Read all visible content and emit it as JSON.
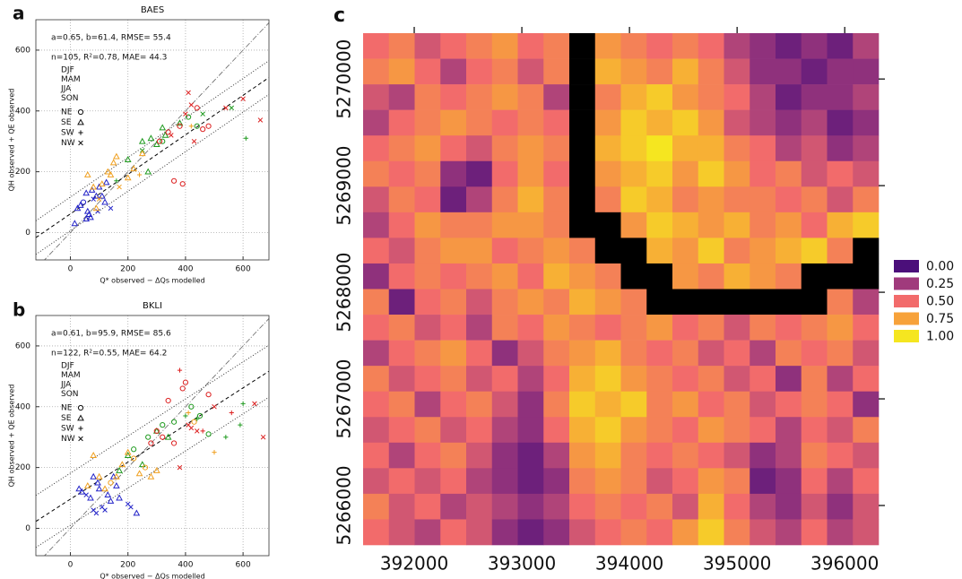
{
  "chart_data": [
    {
      "type": "scatter",
      "label": "a",
      "title": "BAES",
      "stats": [
        "a=0.65, b=61.4, RMSE= 55.4",
        "n=105, R²=0.78, MAE= 44.3"
      ],
      "fit": {
        "slope": 0.65,
        "intercept": 61.4,
        "rmse": 55.4
      },
      "xlabel": "Q* observed − ΔQs modelled",
      "ylabel": "QH observed + QE observed",
      "xlim": [
        -120,
        690
      ],
      "ylim": [
        -90,
        700
      ],
      "xticks": [
        0,
        200,
        400,
        600
      ],
      "yticks": [
        0,
        200,
        400,
        600
      ],
      "grid": true,
      "markers": [
        {
          "name": "NE",
          "shape": "circle"
        },
        {
          "name": "SE",
          "shape": "triangle"
        },
        {
          "name": "SW",
          "shape": "plus"
        },
        {
          "name": "NW",
          "shape": "cross"
        }
      ],
      "series": [
        {
          "name": "DJF",
          "color": "#2323c8",
          "x": [
            15,
            25,
            35,
            45,
            55,
            60,
            65,
            70,
            75,
            80,
            90,
            100,
            110,
            120,
            125,
            140,
            55,
            95
          ],
          "values": [
            30,
            80,
            90,
            100,
            130,
            70,
            60,
            50,
            140,
            110,
            120,
            150,
            120,
            100,
            165,
            80,
            45,
            70
          ],
          "wind": [
            "SE",
            "SE",
            "SE",
            "NE",
            "SE",
            "SE",
            "SE",
            "SE",
            "SE",
            "NW",
            "SE",
            "SE",
            "SE",
            "SE",
            "SE",
            "NW",
            "SE",
            "NW"
          ]
        },
        {
          "name": "MAM",
          "color": "#1f9a1f",
          "x": [
            160,
            200,
            250,
            280,
            300,
            320,
            330,
            380,
            410,
            440,
            460,
            560,
            610,
            320,
            250,
            270
          ],
          "values": [
            170,
            240,
            270,
            310,
            290,
            300,
            320,
            360,
            380,
            350,
            390,
            410,
            310,
            345,
            300,
            200
          ],
          "wind": [
            "SW",
            "SE",
            "NW",
            "SE",
            "SE",
            "NE",
            "SE",
            "SE",
            "NE",
            "NE",
            "NW",
            "NW",
            "SW",
            "SE",
            "SE",
            "SE"
          ]
        },
        {
          "name": "JJA",
          "color": "#dc2020",
          "x": [
            310,
            340,
            350,
            380,
            400,
            410,
            420,
            440,
            480,
            540,
            600,
            660,
            360,
            390,
            430,
            460
          ],
          "values": [
            300,
            330,
            320,
            350,
            390,
            460,
            420,
            410,
            350,
            410,
            440,
            370,
            170,
            160,
            300,
            340
          ],
          "wind": [
            "NE",
            "NE",
            "NW",
            "NE",
            "NW",
            "NW",
            "NW",
            "NE",
            "NE",
            "NW",
            "NW",
            "NW",
            "NE",
            "NE",
            "NW",
            "NE"
          ]
        },
        {
          "name": "SON",
          "color": "#f0a020",
          "x": [
            80,
            90,
            100,
            130,
            140,
            150,
            160,
            170,
            200,
            220,
            240,
            250,
            60,
            110,
            420
          ],
          "values": [
            150,
            80,
            110,
            200,
            190,
            230,
            250,
            150,
            180,
            210,
            190,
            260,
            190,
            160,
            350
          ],
          "wind": [
            "SE",
            "SE",
            "NW",
            "SE",
            "SE",
            "SE",
            "SE",
            "NW",
            "SE",
            "SE",
            "SW",
            "SE",
            "SE",
            "SE",
            "SW"
          ]
        }
      ]
    },
    {
      "type": "scatter",
      "label": "b",
      "title": "BKLI",
      "stats": [
        "a=0.61, b=95.9, RMSE= 85.6",
        "n=122, R²=0.55, MAE= 64.2"
      ],
      "fit": {
        "slope": 0.61,
        "intercept": 95.9,
        "rmse": 85.6
      },
      "xlabel": "Q* observed − ΔQs modelled",
      "ylabel": "QH observed + QE observed",
      "xlim": [
        -120,
        690
      ],
      "ylim": [
        -90,
        700
      ],
      "xticks": [
        0,
        200,
        400,
        600
      ],
      "yticks": [
        0,
        200,
        400,
        600
      ],
      "grid": true,
      "markers": [
        {
          "name": "NE",
          "shape": "circle"
        },
        {
          "name": "SE",
          "shape": "triangle"
        },
        {
          "name": "SW",
          "shape": "plus"
        },
        {
          "name": "NW",
          "shape": "cross"
        }
      ],
      "series": [
        {
          "name": "DJF",
          "color": "#2323c8",
          "x": [
            30,
            40,
            55,
            70,
            80,
            90,
            95,
            100,
            110,
            120,
            130,
            140,
            150,
            160,
            170,
            200,
            210,
            230,
            80
          ],
          "values": [
            130,
            120,
            110,
            100,
            60,
            50,
            150,
            130,
            70,
            60,
            110,
            90,
            170,
            140,
            100,
            80,
            70,
            50,
            170
          ],
          "wind": [
            "SE",
            "SE",
            "NW",
            "SE",
            "NW",
            "NW",
            "SE",
            "SE",
            "NW",
            "NW",
            "SE",
            "SE",
            "SE",
            "SE",
            "SE",
            "NW",
            "NW",
            "SE",
            "SE"
          ]
        },
        {
          "name": "MAM",
          "color": "#1f9a1f",
          "x": [
            170,
            200,
            220,
            250,
            270,
            300,
            320,
            340,
            360,
            400,
            420,
            440,
            450,
            480,
            540,
            590,
            600
          ],
          "values": [
            190,
            240,
            260,
            210,
            300,
            320,
            340,
            300,
            350,
            370,
            400,
            360,
            370,
            310,
            300,
            340,
            410
          ],
          "wind": [
            "SE",
            "SE",
            "NE",
            "SE",
            "NE",
            "SE",
            "NE",
            "SE",
            "NE",
            "SW",
            "NE",
            "SW",
            "NE",
            "NE",
            "SW",
            "SW",
            "SW"
          ]
        },
        {
          "name": "JJA",
          "color": "#dc2020",
          "x": [
            280,
            300,
            320,
            340,
            360,
            380,
            390,
            400,
            410,
            420,
            440,
            460,
            480,
            500,
            560,
            640,
            670,
            380
          ],
          "values": [
            280,
            320,
            300,
            420,
            280,
            200,
            460,
            480,
            340,
            330,
            320,
            320,
            440,
            400,
            380,
            410,
            300,
            520
          ],
          "wind": [
            "NE",
            "NE",
            "NE",
            "NE",
            "NE",
            "NW",
            "NE",
            "NE",
            "NW",
            "NW",
            "NW",
            "SW",
            "NE",
            "NW",
            "SW",
            "NW",
            "NW",
            "SW"
          ]
        },
        {
          "name": "SON",
          "color": "#f0a020",
          "x": [
            60,
            80,
            100,
            120,
            140,
            160,
            180,
            200,
            220,
            240,
            260,
            280,
            300,
            410,
            430,
            500
          ],
          "values": [
            140,
            240,
            170,
            130,
            150,
            170,
            210,
            250,
            230,
            180,
            200,
            170,
            190,
            380,
            350,
            250
          ],
          "wind": [
            "SE",
            "SE",
            "SE",
            "SE",
            "NE",
            "SE",
            "SE",
            "SE",
            "NE",
            "SE",
            "NE",
            "SE",
            "SE",
            "SW",
            "NE",
            "SW"
          ]
        }
      ]
    },
    {
      "type": "heatmap",
      "label": "c",
      "xlim": [
        391525,
        396315
      ],
      "ylim": [
        5265630,
        5270430
      ],
      "xticks": [
        392000,
        393000,
        394000,
        395000,
        396000
      ],
      "yticks": [
        5266000,
        5267000,
        5268000,
        5269000,
        5270000
      ],
      "nodata_color": "#000000",
      "colorbar": [
        {
          "value": 0,
          "label": "0.00",
          "color": "#4b0f7a"
        },
        {
          "value": 0.25,
          "label": "0.25",
          "color": "#a03a7c"
        },
        {
          "value": 0.5,
          "label": "0.50",
          "color": "#f26b6b"
        },
        {
          "value": 0.75,
          "label": "0.75",
          "color": "#f7a23a"
        },
        {
          "value": 1,
          "label": "1.00",
          "color": "#f5e620"
        }
      ],
      "z": [
        [
          0.5,
          0.6,
          0.4,
          0.5,
          0.6,
          0.7,
          0.5,
          0.6,
          null,
          0.7,
          0.6,
          0.5,
          0.6,
          0.5,
          0.3,
          0.2,
          0.1,
          0.2,
          0.1,
          0.3
        ],
        [
          0.6,
          0.7,
          0.5,
          0.3,
          0.5,
          0.6,
          0.4,
          0.6,
          null,
          0.8,
          0.7,
          0.6,
          0.8,
          0.6,
          0.4,
          0.2,
          0.2,
          0.1,
          0.2,
          0.2
        ],
        [
          0.4,
          0.3,
          0.6,
          0.5,
          0.6,
          0.7,
          0.6,
          0.3,
          null,
          0.6,
          0.8,
          0.9,
          0.7,
          0.6,
          0.5,
          0.3,
          0.1,
          0.2,
          0.2,
          0.3
        ],
        [
          0.3,
          0.5,
          0.6,
          0.7,
          0.6,
          0.5,
          0.6,
          0.5,
          null,
          0.7,
          0.9,
          0.8,
          0.9,
          0.7,
          0.4,
          0.3,
          0.2,
          0.3,
          0.1,
          0.2
        ],
        [
          0.5,
          0.6,
          0.7,
          0.5,
          0.4,
          0.6,
          0.7,
          0.6,
          null,
          0.8,
          0.9,
          1,
          0.8,
          0.8,
          0.6,
          0.5,
          0.3,
          0.4,
          0.2,
          0.3
        ],
        [
          0.6,
          0.5,
          0.6,
          0.2,
          0.1,
          0.5,
          0.7,
          0.5,
          null,
          0.7,
          0.8,
          0.9,
          0.7,
          0.9,
          0.7,
          0.5,
          0.6,
          0.4,
          0.5,
          0.4
        ],
        [
          0.4,
          0.6,
          0.5,
          0.1,
          0.3,
          0.6,
          0.8,
          0.6,
          null,
          0.6,
          0.9,
          0.8,
          0.6,
          0.7,
          0.6,
          0.6,
          0.5,
          0.6,
          0.4,
          0.6
        ],
        [
          0.3,
          0.5,
          0.7,
          0.6,
          0.6,
          0.7,
          0.7,
          0.6,
          null,
          null,
          0.7,
          0.9,
          0.8,
          0.7,
          0.8,
          0.6,
          0.7,
          0.5,
          0.8,
          0.9
        ],
        [
          0.5,
          0.4,
          0.6,
          0.7,
          0.7,
          0.5,
          0.6,
          0.7,
          0.6,
          null,
          null,
          0.8,
          0.7,
          0.9,
          0.6,
          0.7,
          0.8,
          0.9,
          0.6,
          null
        ],
        [
          0.2,
          0.5,
          0.6,
          0.5,
          0.6,
          0.7,
          0.5,
          0.8,
          0.7,
          0.6,
          null,
          null,
          0.7,
          0.6,
          0.8,
          0.7,
          0.6,
          null,
          null,
          null
        ],
        [
          0.6,
          0.1,
          0.5,
          0.6,
          0.4,
          0.6,
          0.7,
          0.6,
          0.8,
          0.7,
          0.6,
          null,
          null,
          null,
          null,
          null,
          null,
          null,
          0.6,
          0.3
        ],
        [
          0.5,
          0.6,
          0.4,
          0.5,
          0.3,
          0.6,
          0.5,
          0.7,
          0.6,
          0.5,
          0.6,
          0.7,
          0.5,
          0.6,
          0.4,
          0.6,
          0.5,
          0.6,
          0.7,
          0.5
        ],
        [
          0.3,
          0.5,
          0.6,
          0.7,
          0.5,
          0.2,
          0.4,
          0.6,
          0.7,
          0.8,
          0.6,
          0.5,
          0.6,
          0.4,
          0.5,
          0.3,
          0.6,
          0.5,
          0.6,
          0.4
        ],
        [
          0.6,
          0.4,
          0.5,
          0.6,
          0.4,
          0.5,
          0.3,
          0.5,
          0.8,
          0.9,
          0.7,
          0.6,
          0.5,
          0.6,
          0.4,
          0.5,
          0.2,
          0.6,
          0.3,
          0.5
        ],
        [
          0.5,
          0.6,
          0.3,
          0.5,
          0.6,
          0.4,
          0.2,
          0.6,
          0.9,
          0.8,
          0.9,
          0.6,
          0.7,
          0.5,
          0.6,
          0.4,
          0.5,
          0.6,
          0.5,
          0.2
        ],
        [
          0.4,
          0.5,
          0.6,
          0.4,
          0.5,
          0.3,
          0.2,
          0.5,
          0.8,
          0.9,
          0.7,
          0.6,
          0.5,
          0.7,
          0.6,
          0.5,
          0.3,
          0.5,
          0.4,
          0.6
        ],
        [
          0.5,
          0.3,
          0.5,
          0.6,
          0.4,
          0.2,
          0.1,
          0.3,
          0.7,
          0.8,
          0.6,
          0.5,
          0.6,
          0.5,
          0.4,
          0.2,
          0.3,
          0.6,
          0.5,
          0.4
        ],
        [
          0.4,
          0.5,
          0.4,
          0.5,
          0.3,
          0.2,
          0.1,
          0.2,
          0.6,
          0.7,
          0.6,
          0.4,
          0.5,
          0.7,
          0.6,
          0.1,
          0.2,
          0.5,
          0.3,
          0.5
        ],
        [
          0.6,
          0.4,
          0.5,
          0.3,
          0.4,
          0.3,
          0.2,
          0.3,
          0.5,
          0.6,
          0.5,
          0.6,
          0.4,
          0.8,
          0.5,
          0.3,
          0.2,
          0.4,
          0.2,
          0.4
        ],
        [
          0.5,
          0.4,
          0.3,
          0.5,
          0.4,
          0.2,
          0.1,
          0.2,
          0.4,
          0.5,
          0.6,
          0.5,
          0.7,
          0.9,
          0.6,
          0.4,
          0.3,
          0.5,
          0.3,
          0.4
        ]
      ]
    }
  ]
}
